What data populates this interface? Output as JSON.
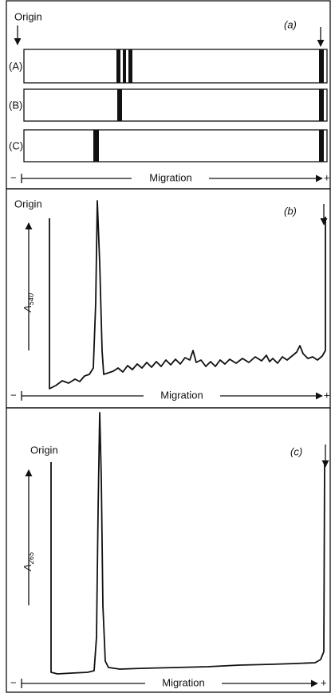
{
  "panels": [
    {
      "label": "(a)",
      "origin": "Origin",
      "lanes": [
        "(A)",
        "(B)",
        "(C)"
      ],
      "axis": {
        "minus": "−",
        "label": "Migration",
        "plus": "+"
      }
    },
    {
      "label": "(b)",
      "origin": "Origin",
      "y_label": {
        "symbol": "A",
        "subscript": "540"
      },
      "axis": {
        "minus": "−",
        "label": "Migration",
        "plus": "+"
      }
    },
    {
      "label": "(c)",
      "origin": "Origin",
      "y_label": {
        "symbol": "A",
        "subscript": "265"
      },
      "axis": {
        "minus": "−",
        "label": "Migration",
        "plus": "+"
      }
    }
  ]
}
